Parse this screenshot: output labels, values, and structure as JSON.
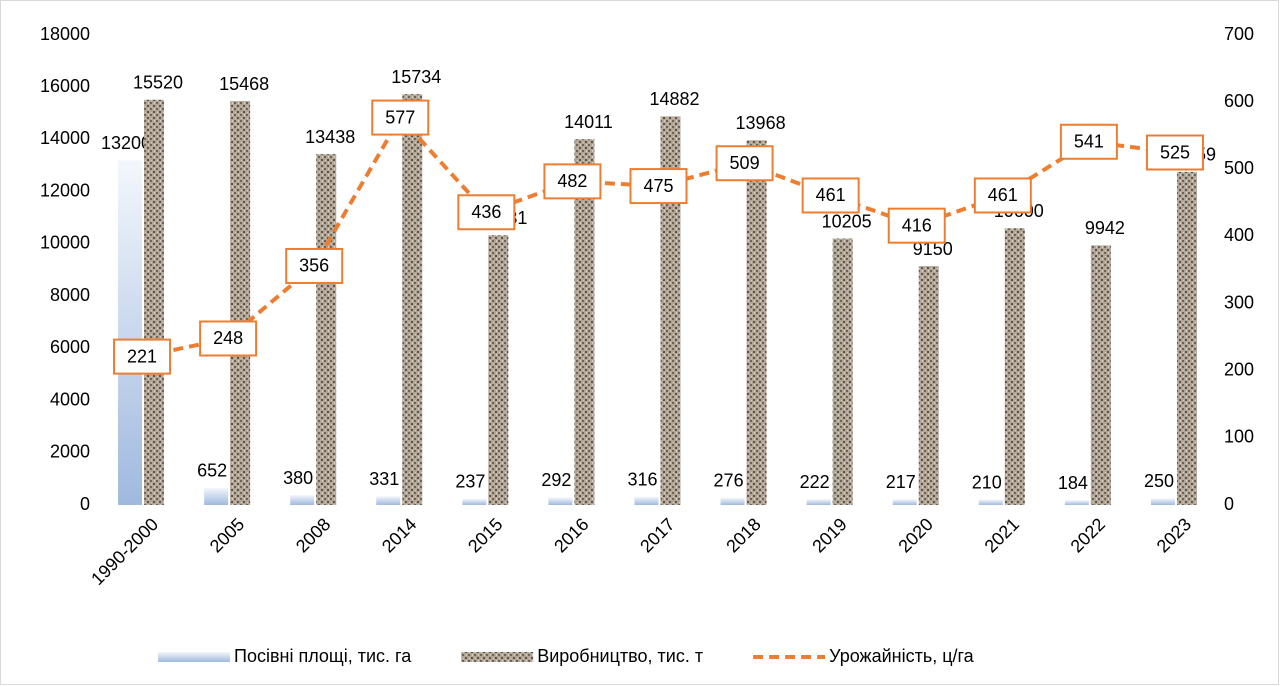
{
  "chart_data": {
    "type": "bar",
    "categories": [
      "1990-2000",
      "2005",
      "2008",
      "2014",
      "2015",
      "2016",
      "2017",
      "2018",
      "2019",
      "2020",
      "2021",
      "2022",
      "2023"
    ],
    "series": [
      {
        "name": "Посівні площі, тис. га",
        "color": "#b4c7e7",
        "values": [
          13200,
          652,
          380,
          331,
          237,
          292,
          316,
          276,
          222,
          217,
          210,
          184,
          250
        ]
      },
      {
        "name": "Виробництво, тис. т",
        "color": "#8c7f72",
        "values": [
          15520,
          15468,
          13438,
          15734,
          10331,
          14011,
          14882,
          13968,
          10205,
          9150,
          10600,
          9942,
          12759
        ]
      },
      {
        "name": "Урожайність, ц/га",
        "color": "#ed7d31",
        "type": "line",
        "axis": "y2",
        "values": [
          221,
          248,
          356,
          577,
          436,
          482,
          475,
          509,
          461,
          416,
          461,
          541,
          525
        ]
      }
    ],
    "ylim": [
      0,
      18000
    ],
    "yticks": [
      0,
      2000,
      4000,
      6000,
      8000,
      10000,
      12000,
      14000,
      16000,
      18000
    ],
    "y2lim": [
      0,
      700
    ],
    "y2ticks": [
      0,
      100,
      200,
      300,
      400,
      500,
      600,
      700
    ],
    "legend": "bottom"
  }
}
